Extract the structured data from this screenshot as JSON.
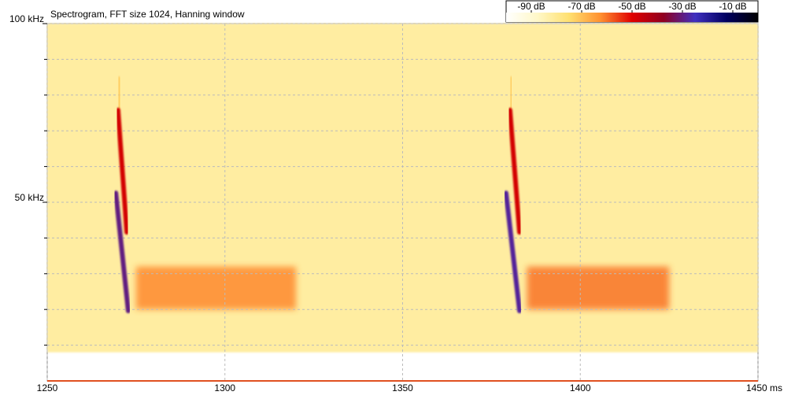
{
  "chart_data": {
    "type": "spectrogram",
    "title": "Spectrogram, FFT size 1024, Hanning window",
    "xlim": [
      1250,
      1450
    ],
    "xticks": [
      1250,
      1300,
      1350,
      1400,
      {
        "value": 1450,
        "label": "1450 ms"
      }
    ],
    "ylim": [
      0,
      100
    ],
    "yticks": [
      {
        "value": 50,
        "label": "50 kHz"
      },
      {
        "value": 100,
        "label": "100 kHz"
      }
    ],
    "yminor": [
      10,
      20,
      30,
      40,
      60,
      70,
      80,
      90
    ],
    "grid": true,
    "clim": [
      -100,
      0
    ],
    "cticks": [
      {
        "value": -90,
        "label": "-90 dB"
      },
      {
        "value": -70,
        "label": "-70 dB"
      },
      {
        "value": -50,
        "label": "-50 dB"
      },
      {
        "value": -30,
        "label": "-30 dB"
      },
      {
        "value": -10,
        "label": "-10 dB"
      }
    ],
    "colormap": [
      "#ffffff",
      "#fff8c8",
      "#ffe070",
      "#ff9030",
      "#e00000",
      "#900020",
      "#4030c0",
      "#000060",
      "#000000"
    ],
    "regions": [
      {
        "t": [
          1250,
          1450
        ],
        "f": [
          8,
          100
        ],
        "level": -82
      },
      {
        "t": [
          1275,
          1320
        ],
        "f": [
          20,
          32
        ],
        "level": -62
      },
      {
        "t": [
          1385,
          1425
        ],
        "f": [
          20,
          32
        ],
        "level": -60
      }
    ],
    "calls": [
      {
        "t": [
          1270.1,
          1270.4
        ],
        "f": [
          84.6,
          75.8
        ],
        "level": -72
      },
      {
        "t": [
          1269.9,
          1272.4
        ],
        "f": [
          75.8,
          41.6
        ],
        "level": -48
      },
      {
        "t": [
          1269.3,
          1272.8
        ],
        "f": [
          52.6,
          19.6
        ],
        "level": -30
      },
      {
        "t": [
          1380.6,
          1380.4
        ],
        "f": [
          84.6,
          75.8
        ],
        "level": -72
      },
      {
        "t": [
          1380.2,
          1382.9
        ],
        "f": [
          75.8,
          41.6
        ],
        "level": -48
      },
      {
        "t": [
          1379.1,
          1382.9
        ],
        "f": [
          52.6,
          19.6
        ],
        "level": -28
      }
    ]
  }
}
